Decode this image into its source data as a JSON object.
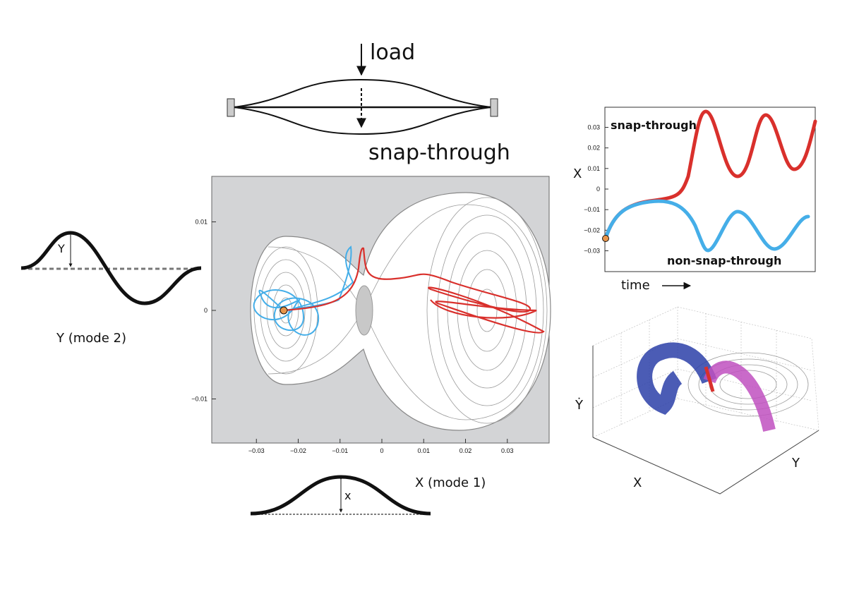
{
  "labels": {
    "load": "load",
    "snap": "snap-through",
    "y_mode": "Y (mode 2)",
    "x_mode": "X (mode 1)",
    "y_amp": "Y",
    "x_amp": "x"
  },
  "phase_plot": {
    "xticks": [
      {
        "value": -0.03,
        "label": "−0.03"
      },
      {
        "value": -0.02,
        "label": "−0.02"
      },
      {
        "value": -0.01,
        "label": "−0.01"
      },
      0,
      0.01,
      0.02,
      0.03
    ],
    "yticks": [
      0.01,
      0,
      {
        "value": -0.01,
        "label": "−0.01"
      }
    ]
  },
  "time_plot": {
    "ylabel": "X",
    "xlabel": "time",
    "yticks": [
      0.03,
      0.02,
      0.01,
      0,
      {
        "value": -0.01,
        "label": "−0.01"
      },
      {
        "value": -0.02,
        "label": "−0.02"
      },
      {
        "value": -0.03,
        "label": "−0.03"
      }
    ],
    "series": [
      {
        "name": "snap-through",
        "color": "#d9302c"
      },
      {
        "name": "non-snap-through",
        "color": "#45aee8"
      }
    ]
  },
  "plot3d": {
    "xlabel": "X",
    "ylabel": "Y",
    "zlabel": "Ẏ"
  }
}
